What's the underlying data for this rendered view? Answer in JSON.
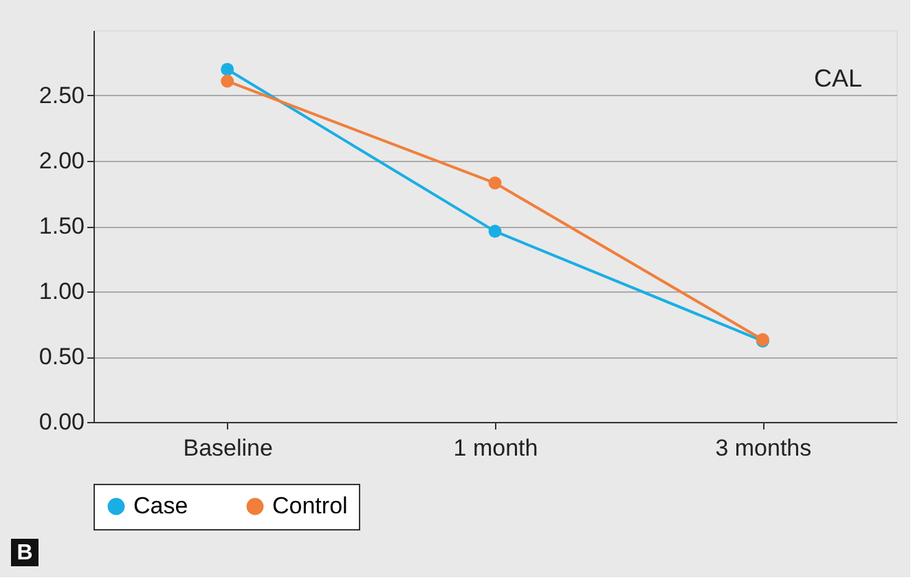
{
  "chart_data": {
    "type": "line",
    "categories": [
      "Baseline",
      "1 month",
      "3 months"
    ],
    "series": [
      {
        "name": "Case",
        "color": "#1aaee5",
        "values": [
          2.7,
          1.46,
          0.62
        ]
      },
      {
        "name": "Control",
        "color": "#f07f3c",
        "values": [
          2.61,
          1.83,
          0.63
        ]
      }
    ],
    "ylim": [
      0,
      3
    ],
    "yticks": [
      {
        "value": 0,
        "label": "0.00"
      },
      {
        "value": 0.5,
        "label": "0.50"
      },
      {
        "value": 1,
        "label": "1.00"
      },
      {
        "value": 1.5,
        "label": "1.50"
      },
      {
        "value": 2,
        "label": "2.00"
      },
      {
        "value": 2.5,
        "label": "2.50"
      }
    ],
    "grid": "y",
    "legend": "bottom",
    "marker": "circle",
    "line_style": "solid",
    "annotations": [
      "CAL",
      "B"
    ]
  }
}
